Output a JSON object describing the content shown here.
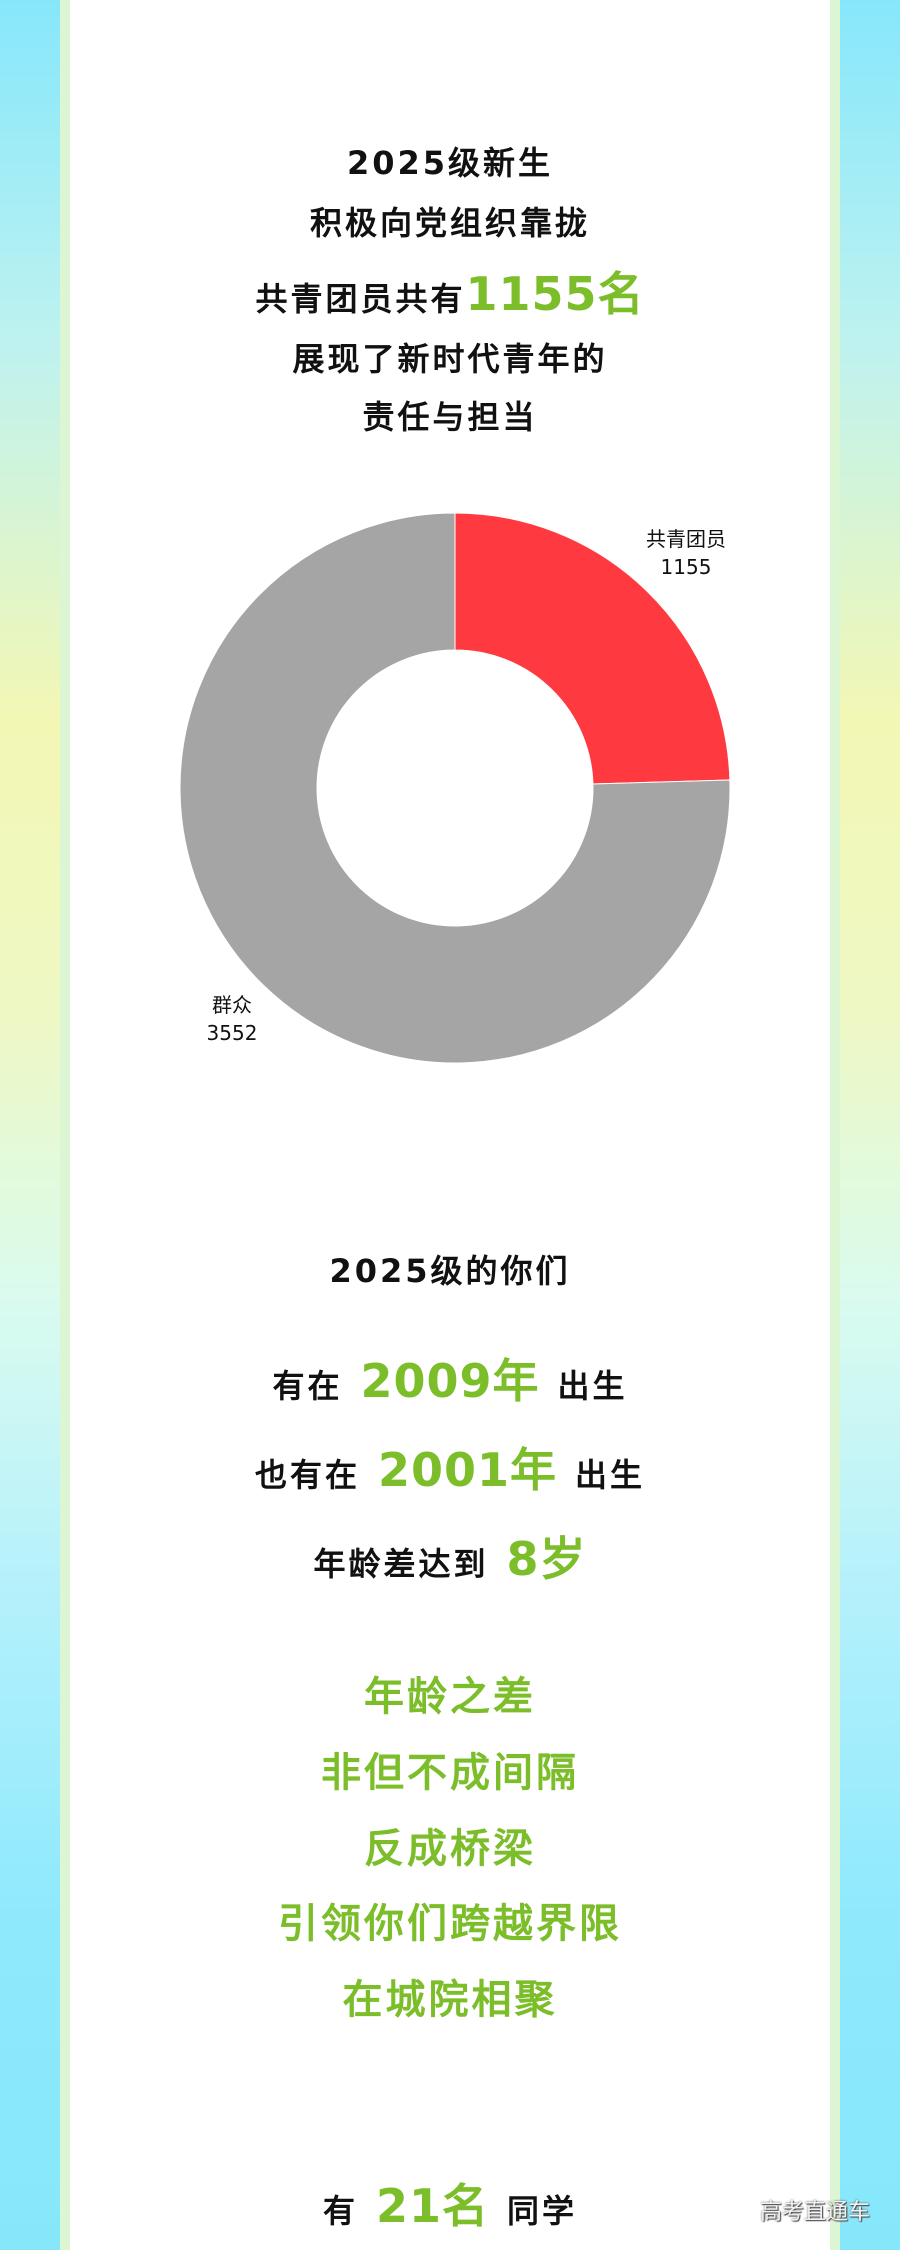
{
  "intro": {
    "line1": "2025级新生",
    "line2": "积极向党组织靠拢",
    "line3_prefix": "共青团员共有",
    "line3_highlight": "1155名",
    "line4": "展现了新时代青年的",
    "line5": "责任与担当"
  },
  "chart_data": {
    "type": "pie",
    "donut": true,
    "categories": [
      "共青团员",
      "群众"
    ],
    "values": [
      1155,
      3552
    ],
    "labels": [
      "1155",
      "3552"
    ],
    "colors": [
      "#fe3a40",
      "#a5a5a5"
    ]
  },
  "age": {
    "heading": "2025级的你们",
    "row1_prefix": "有在",
    "row1_highlight": "2009年",
    "row1_suffix": "出生",
    "row2_prefix": "也有在",
    "row2_highlight": "2001年",
    "row2_suffix": "出生",
    "row3_prefix": "年龄差达到",
    "row3_highlight": "8岁"
  },
  "slogan": [
    "年龄之差",
    "非但不成间隔",
    "反成桥梁",
    "引领你们跨越界限",
    "在城院相聚"
  ],
  "bottom": {
    "prefix": "有",
    "highlight": "21名",
    "suffix": "同学"
  },
  "watermark": "高考直通车",
  "colors": {
    "accent_green": "#7cbd2a",
    "side_blue": "#86e7fb"
  }
}
